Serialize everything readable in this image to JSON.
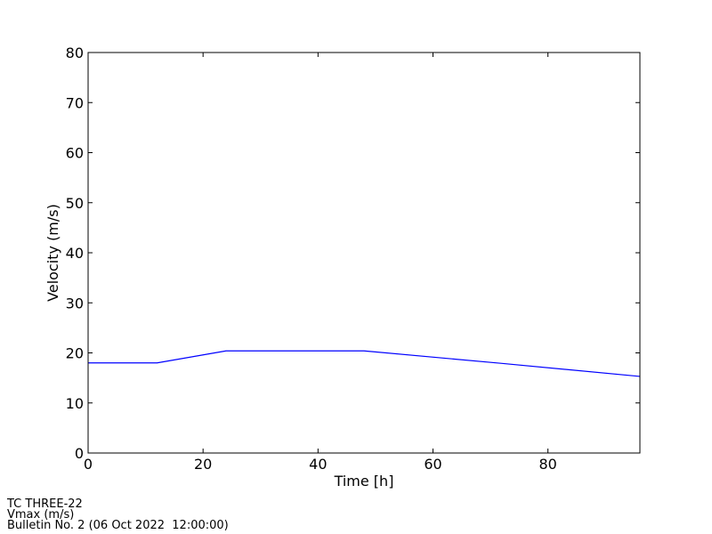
{
  "chart_data": {
    "type": "line",
    "xlabel": "Time [h]",
    "ylabel": "Velocity (m/s)",
    "x": [
      0,
      12,
      24,
      48,
      72,
      96
    ],
    "series": [
      {
        "name": "Vmax",
        "color": "#0000ff",
        "values": [
          18,
          18,
          20.4,
          20.4,
          17.9,
          15.3
        ]
      }
    ],
    "xlim": [
      0,
      96
    ],
    "xticks": [
      0,
      20,
      40,
      60,
      80
    ],
    "ylim": [
      0,
      80
    ],
    "yticks": [
      0,
      10,
      20,
      30,
      40,
      50,
      60,
      70,
      80
    ],
    "grid": false
  },
  "footer": {
    "lines": [
      "TC THREE-22",
      "Vmax (m/s)",
      "Bulletin No. 2 (06 Oct 2022  12:00:00)"
    ]
  }
}
